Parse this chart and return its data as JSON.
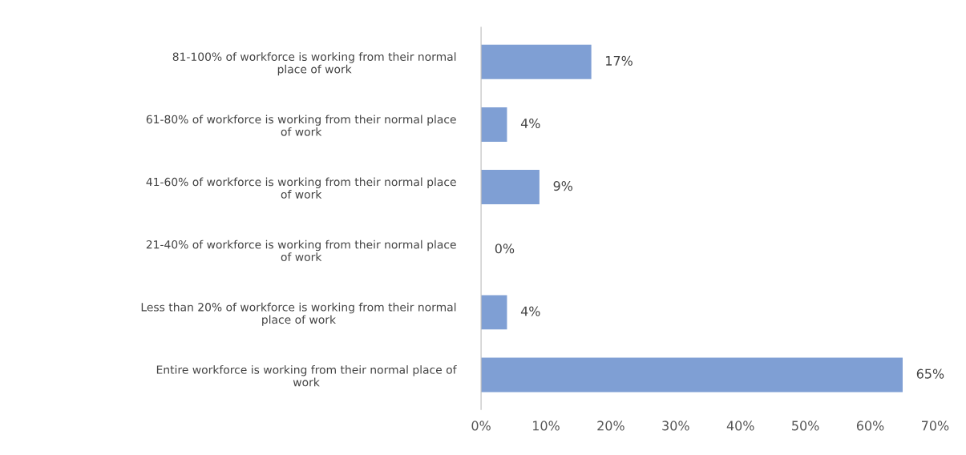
{
  "chart_data": {
    "type": "bar",
    "orientation": "horizontal",
    "categories": [
      "81-100% of workforce is working from their normal\nplace of work",
      "61-80% of workforce is working from their normal place\nof work",
      "41-60% of workforce is working from their normal place\nof work",
      "21-40% of workforce is working from their normal place\nof work",
      "Less than 20% of workforce is working from their normal\nplace of work",
      "Entire workforce is working from their normal place of\nwork"
    ],
    "values": [
      17,
      4,
      9,
      0,
      4,
      65
    ],
    "value_labels": [
      "17%",
      "4%",
      "9%",
      "0%",
      "4%",
      "65%"
    ],
    "color": "#7f9fd4",
    "xlim": [
      0,
      70
    ],
    "xticks": [
      {
        "value": 0,
        "label": "0%"
      },
      {
        "value": 10,
        "label": "10%"
      },
      {
        "value": 20,
        "label": "20%"
      },
      {
        "value": 30,
        "label": "30%"
      },
      {
        "value": 40,
        "label": "40%"
      },
      {
        "value": 50,
        "label": "50%"
      },
      {
        "value": 60,
        "label": "60%"
      },
      {
        "value": 70,
        "label": "70%"
      }
    ],
    "grid": false,
    "legend": false
  }
}
